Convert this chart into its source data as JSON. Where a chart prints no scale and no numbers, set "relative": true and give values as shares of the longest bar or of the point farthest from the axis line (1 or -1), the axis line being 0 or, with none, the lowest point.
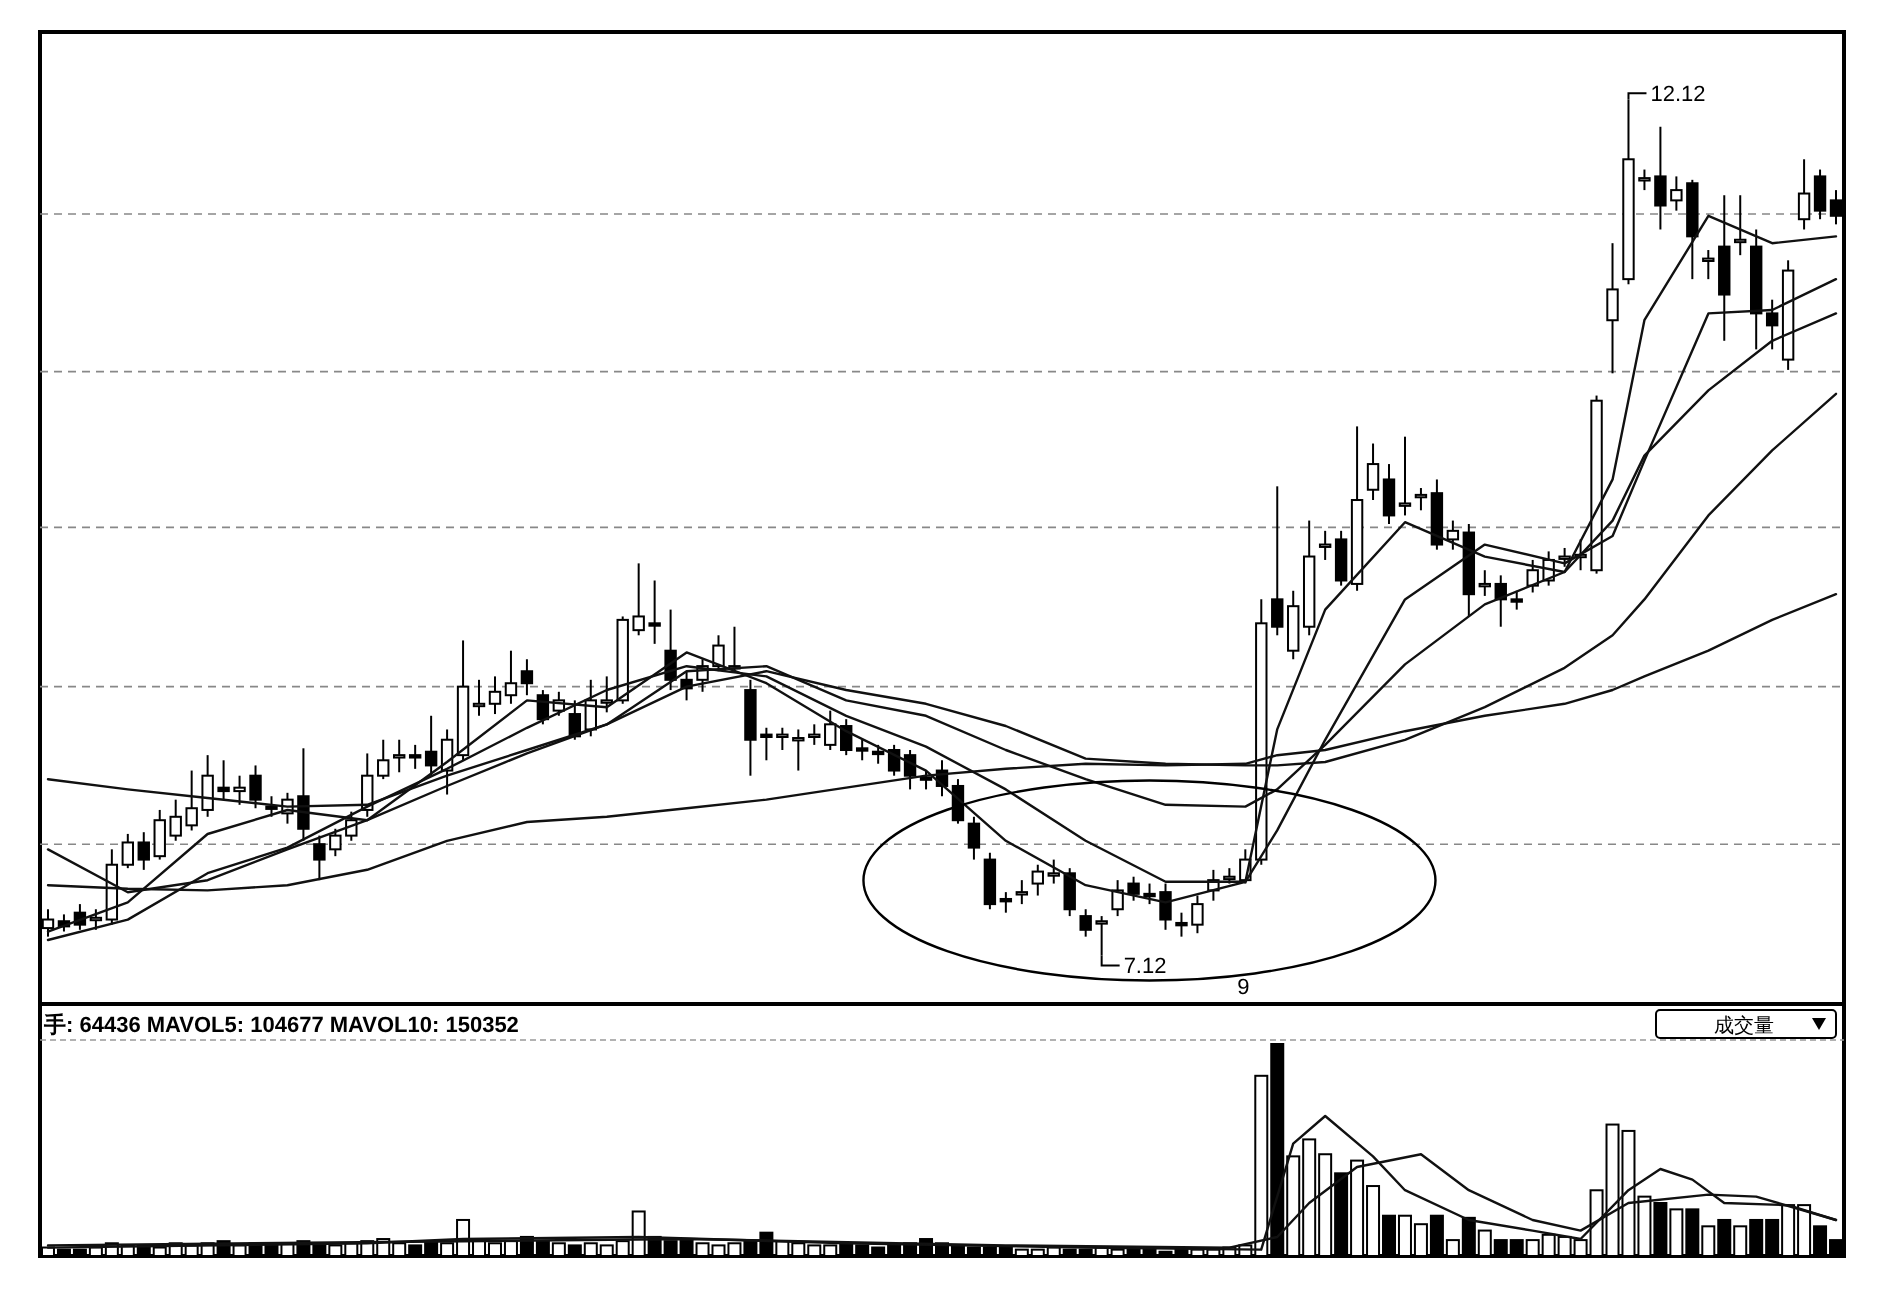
{
  "chart_data": [
    {
      "type": "candlestick",
      "color": "#000000",
      "grid": "y",
      "categories": [
        null,
        null,
        null,
        null,
        null,
        null,
        null,
        null,
        null,
        null,
        null,
        null,
        null,
        null,
        null,
        null,
        null,
        null,
        null,
        null,
        null,
        null,
        null,
        null,
        null,
        null,
        null,
        null,
        null,
        null,
        null,
        null,
        null,
        null,
        null,
        null,
        null,
        null,
        null,
        null,
        null,
        null,
        null,
        null,
        null,
        null,
        null,
        null,
        null,
        null,
        null,
        null,
        null,
        null,
        null,
        null,
        null,
        null,
        null,
        null,
        null,
        null,
        null,
        null,
        null,
        null,
        null,
        null,
        null,
        null,
        null,
        null,
        null,
        null,
        null,
        null,
        null,
        null,
        null,
        null,
        null,
        null,
        null,
        null,
        null,
        null,
        null,
        null,
        null,
        null,
        null,
        null,
        null,
        null,
        null,
        null,
        null,
        null,
        null,
        null,
        null,
        null,
        null,
        null,
        null,
        null,
        null,
        null,
        null,
        null,
        null,
        null,
        null
      ],
      "ohlc": [
        [
          7.28,
          7.39,
          7.23,
          7.33
        ],
        [
          7.32,
          7.36,
          7.26,
          7.29
        ],
        [
          7.37,
          7.42,
          7.27,
          7.3
        ],
        [
          7.33,
          7.39,
          7.27,
          7.34
        ],
        [
          7.33,
          7.74,
          7.3,
          7.65
        ],
        [
          7.65,
          7.83,
          7.63,
          7.78
        ],
        [
          7.78,
          7.84,
          7.62,
          7.68
        ],
        [
          7.7,
          7.97,
          7.68,
          7.91
        ],
        [
          7.82,
          8.03,
          7.79,
          7.93
        ],
        [
          7.88,
          8.2,
          7.85,
          7.98
        ],
        [
          7.97,
          8.29,
          7.93,
          8.17
        ],
        [
          8.1,
          8.26,
          8.03,
          8.08
        ],
        [
          8.08,
          8.17,
          8.0,
          8.1
        ],
        [
          8.17,
          8.23,
          7.98,
          8.03
        ],
        [
          7.99,
          8.05,
          7.93,
          7.98
        ],
        [
          7.95,
          8.07,
          7.89,
          8.03
        ],
        [
          8.05,
          8.33,
          7.79,
          7.86
        ],
        [
          7.77,
          7.82,
          7.56,
          7.68
        ],
        [
          7.74,
          7.86,
          7.7,
          7.82
        ],
        [
          7.82,
          7.96,
          7.79,
          7.91
        ],
        [
          7.97,
          8.3,
          7.93,
          8.17
        ],
        [
          8.17,
          8.38,
          8.15,
          8.26
        ],
        [
          8.28,
          8.38,
          8.19,
          8.29
        ],
        [
          8.29,
          8.35,
          8.21,
          8.28
        ],
        [
          8.31,
          8.52,
          8.17,
          8.23
        ],
        [
          8.2,
          8.44,
          8.06,
          8.38
        ],
        [
          8.29,
          8.96,
          8.26,
          8.69
        ],
        [
          8.58,
          8.73,
          8.52,
          8.59
        ],
        [
          8.59,
          8.75,
          8.53,
          8.66
        ],
        [
          8.64,
          8.9,
          8.59,
          8.71
        ],
        [
          8.78,
          8.85,
          8.64,
          8.71
        ],
        [
          8.64,
          8.67,
          8.47,
          8.5
        ],
        [
          8.55,
          8.66,
          8.52,
          8.61
        ],
        [
          8.53,
          8.61,
          8.38,
          8.4
        ],
        [
          8.44,
          8.73,
          8.4,
          8.61
        ],
        [
          8.6,
          8.75,
          8.54,
          8.61
        ],
        [
          8.61,
          9.1,
          8.59,
          9.08
        ],
        [
          9.02,
          9.41,
          8.99,
          9.1
        ],
        [
          9.06,
          9.31,
          8.94,
          9.05
        ],
        [
          8.9,
          9.14,
          8.67,
          8.73
        ],
        [
          8.73,
          8.78,
          8.61,
          8.68
        ],
        [
          8.73,
          8.85,
          8.66,
          8.81
        ],
        [
          8.81,
          8.99,
          8.78,
          8.93
        ],
        [
          8.8,
          9.04,
          8.78,
          8.81
        ],
        [
          8.67,
          8.73,
          8.17,
          8.38
        ],
        [
          8.41,
          8.45,
          8.26,
          8.4
        ],
        [
          8.4,
          8.45,
          8.32,
          8.41
        ],
        [
          8.38,
          8.44,
          8.2,
          8.39
        ],
        [
          8.4,
          8.47,
          8.35,
          8.41
        ],
        [
          8.35,
          8.55,
          8.32,
          8.47
        ],
        [
          8.46,
          8.5,
          8.29,
          8.32
        ],
        [
          8.33,
          8.38,
          8.26,
          8.32
        ],
        [
          8.31,
          8.35,
          8.24,
          8.3
        ],
        [
          8.32,
          8.35,
          8.17,
          8.2
        ],
        [
          8.29,
          8.32,
          8.09,
          8.17
        ],
        [
          8.16,
          8.2,
          8.09,
          8.15
        ],
        [
          8.2,
          8.26,
          8.05,
          8.11
        ],
        [
          8.11,
          8.15,
          7.89,
          7.91
        ],
        [
          7.89,
          7.93,
          7.68,
          7.75
        ],
        [
          7.68,
          7.72,
          7.39,
          7.42
        ],
        [
          7.45,
          7.49,
          7.37,
          7.44
        ],
        [
          7.48,
          7.56,
          7.42,
          7.49
        ],
        [
          7.54,
          7.65,
          7.47,
          7.61
        ],
        [
          7.59,
          7.68,
          7.54,
          7.6
        ],
        [
          7.6,
          7.63,
          7.35,
          7.39
        ],
        [
          7.35,
          7.39,
          7.23,
          7.27
        ],
        [
          7.31,
          7.35,
          7.12,
          7.32
        ],
        [
          7.39,
          7.56,
          7.35,
          7.5
        ],
        [
          7.54,
          7.58,
          7.44,
          7.48
        ],
        [
          7.48,
          7.54,
          7.42,
          7.47
        ],
        [
          7.49,
          7.54,
          7.27,
          7.33
        ],
        [
          7.31,
          7.37,
          7.23,
          7.3
        ],
        [
          7.3,
          7.47,
          7.25,
          7.42
        ],
        [
          7.5,
          7.62,
          7.44,
          7.56
        ],
        [
          7.57,
          7.63,
          7.54,
          7.58
        ],
        [
          7.56,
          7.74,
          7.54,
          7.68
        ],
        [
          7.68,
          9.2,
          7.65,
          9.06
        ],
        [
          9.2,
          9.86,
          8.99,
          9.04
        ],
        [
          8.9,
          9.25,
          8.85,
          9.16
        ],
        [
          9.04,
          9.66,
          8.99,
          9.45
        ],
        [
          9.51,
          9.6,
          9.43,
          9.52
        ],
        [
          9.55,
          9.6,
          9.28,
          9.31
        ],
        [
          9.29,
          10.21,
          9.25,
          9.78
        ],
        [
          9.84,
          10.11,
          9.78,
          9.99
        ],
        [
          9.9,
          9.99,
          9.64,
          9.69
        ],
        [
          9.75,
          10.15,
          9.69,
          9.76
        ],
        [
          9.8,
          9.85,
          9.72,
          9.81
        ],
        [
          9.82,
          9.9,
          9.49,
          9.52
        ],
        [
          9.55,
          9.66,
          9.49,
          9.6
        ],
        [
          9.59,
          9.64,
          9.1,
          9.23
        ],
        [
          9.28,
          9.37,
          9.22,
          9.29
        ],
        [
          9.29,
          9.34,
          9.04,
          9.2
        ],
        [
          9.2,
          9.25,
          9.14,
          9.19
        ],
        [
          9.28,
          9.43,
          9.24,
          9.37
        ],
        [
          9.31,
          9.48,
          9.28,
          9.43
        ],
        [
          9.44,
          9.5,
          9.39,
          9.45
        ],
        [
          9.45,
          9.55,
          9.37,
          9.46
        ],
        [
          9.37,
          10.39,
          9.35,
          10.36
        ],
        [
          10.83,
          11.28,
          10.52,
          11.01
        ],
        [
          11.07,
          12.12,
          11.04,
          11.77
        ],
        [
          11.65,
          11.71,
          11.59,
          11.66
        ],
        [
          11.67,
          11.96,
          11.36,
          11.5
        ],
        [
          11.53,
          11.67,
          11.47,
          11.59
        ],
        [
          11.63,
          11.65,
          11.07,
          11.32
        ],
        [
          11.18,
          11.24,
          11.07,
          11.19
        ],
        [
          11.26,
          11.56,
          10.71,
          10.98
        ],
        [
          11.29,
          11.56,
          11.21,
          11.3
        ],
        [
          11.26,
          11.36,
          10.66,
          10.87
        ],
        [
          10.87,
          10.95,
          10.66,
          10.8
        ],
        [
          10.6,
          11.18,
          10.54,
          11.12
        ],
        [
          11.42,
          11.77,
          11.36,
          11.57
        ],
        [
          11.67,
          11.71,
          11.42,
          11.47
        ],
        [
          11.53,
          11.59,
          11.39,
          11.44
        ]
      ],
      "ylim": [
        6.86,
        12.49
      ],
      "yticks": [
        {
          "value": 7.77,
          "label": null
        },
        {
          "value": 8.69,
          "label": null
        },
        {
          "value": 9.62,
          "label": null
        },
        {
          "value": 10.53,
          "label": null
        },
        {
          "value": 11.45,
          "label": null
        }
      ],
      "series": [
        {
          "type": "line",
          "color": "#111111",
          "values": [
            7.26,
            null,
            null,
            null,
            null,
            7.43,
            null,
            null,
            null,
            null,
            7.83,
            null,
            null,
            null,
            null,
            7.97,
            null,
            null,
            null,
            null,
            7.91,
            null,
            null,
            null,
            null,
            8.25,
            null,
            null,
            null,
            null,
            8.61,
            null,
            null,
            null,
            null,
            8.57,
            null,
            null,
            null,
            null,
            8.89,
            null,
            null,
            null,
            null,
            8.71,
            null,
            null,
            null,
            null,
            8.43,
            null,
            null,
            null,
            null,
            8.2,
            null,
            null,
            null,
            null,
            7.79,
            null,
            null,
            null,
            null,
            7.53,
            null,
            null,
            null,
            null,
            7.43,
            null,
            null,
            null,
            null,
            7.55,
            null,
            8.44,
            null,
            null,
            9.14,
            null,
            null,
            null,
            null,
            9.65,
            null,
            null,
            null,
            null,
            9.45,
            null,
            null,
            null,
            null,
            9.36,
            null,
            null,
            9.9,
            null,
            10.83,
            null,
            null,
            null,
            11.44,
            null,
            null,
            null,
            11.28,
            null,
            null,
            null,
            11.32
          ]
        },
        {
          "type": "line",
          "color": "#111111",
          "values": [
            7.21,
            null,
            null,
            null,
            null,
            7.33,
            null,
            null,
            null,
            null,
            7.6,
            null,
            null,
            null,
            null,
            7.75,
            null,
            null,
            null,
            null,
            7.99,
            null,
            null,
            null,
            null,
            8.21,
            null,
            null,
            null,
            null,
            8.45,
            null,
            null,
            null,
            null,
            8.67,
            null,
            null,
            null,
            null,
            8.81,
            null,
            null,
            null,
            null,
            8.75,
            null,
            null,
            null,
            null,
            8.52,
            null,
            null,
            null,
            null,
            8.34,
            null,
            null,
            null,
            null,
            8.09,
            null,
            null,
            null,
            null,
            7.79,
            null,
            null,
            null,
            null,
            7.55,
            null,
            null,
            null,
            null,
            7.55,
            null,
            7.85,
            null,
            null,
            8.38,
            null,
            null,
            null,
            null,
            9.2,
            null,
            null,
            null,
            null,
            9.52,
            null,
            null,
            null,
            null,
            9.41,
            null,
            null,
            9.57,
            null,
            10.01,
            null,
            null,
            null,
            10.87,
            null,
            null,
            null,
            10.89,
            null,
            null,
            null,
            11.07
          ]
        },
        {
          "type": "line",
          "color": "#111111",
          "values": [
            7.74,
            null,
            null,
            null,
            null,
            7.49,
            null,
            null,
            null,
            null,
            7.56,
            null,
            null,
            null,
            null,
            7.74,
            null,
            null,
            null,
            null,
            7.91,
            null,
            null,
            null,
            null,
            8.11,
            null,
            null,
            null,
            null,
            8.3,
            null,
            null,
            null,
            null,
            8.47,
            null,
            null,
            null,
            null,
            8.78,
            null,
            null,
            null,
            null,
            8.81,
            null,
            null,
            null,
            null,
            8.61,
            null,
            null,
            null,
            null,
            8.52,
            null,
            null,
            null,
            null,
            8.32,
            null,
            null,
            null,
            null,
            8.15,
            null,
            null,
            null,
            null,
            8.0,
            null,
            null,
            null,
            null,
            7.99,
            null,
            8.09,
            null,
            null,
            8.35,
            null,
            null,
            null,
            null,
            8.82,
            null,
            null,
            null,
            null,
            9.17,
            null,
            null,
            null,
            null,
            9.36,
            null,
            null,
            9.66,
            null,
            10.04,
            null,
            null,
            null,
            10.42,
            null,
            null,
            null,
            10.71,
            null,
            null,
            null,
            10.87
          ]
        },
        {
          "type": "line",
          "color": "#111111",
          "values": [
            8.15,
            null,
            null,
            null,
            null,
            8.09,
            null,
            null,
            null,
            null,
            8.04,
            null,
            null,
            null,
            null,
            7.99,
            null,
            null,
            null,
            null,
            8.0,
            null,
            null,
            null,
            null,
            8.17,
            null,
            null,
            null,
            null,
            8.32,
            null,
            null,
            null,
            null,
            8.47,
            null,
            null,
            null,
            null,
            8.69,
            null,
            null,
            null,
            null,
            8.78,
            null,
            null,
            null,
            null,
            8.67,
            null,
            null,
            null,
            null,
            8.59,
            null,
            null,
            null,
            null,
            8.46,
            null,
            null,
            null,
            null,
            8.27,
            null,
            null,
            null,
            null,
            8.24,
            null,
            null,
            null,
            null,
            8.23,
            null,
            8.23,
            null,
            null,
            8.25,
            null,
            null,
            null,
            null,
            8.38,
            null,
            null,
            null,
            null,
            8.57,
            null,
            null,
            null,
            null,
            8.8,
            null,
            null,
            8.99,
            null,
            9.2,
            null,
            null,
            null,
            9.69,
            null,
            null,
            null,
            10.07,
            null,
            null,
            null,
            10.4
          ]
        },
        {
          "type": "line",
          "color": "#111111",
          "values": [
            7.53,
            null,
            null,
            null,
            null,
            7.51,
            null,
            null,
            null,
            null,
            7.5,
            null,
            null,
            null,
            null,
            7.53,
            null,
            null,
            null,
            null,
            7.62,
            null,
            null,
            null,
            null,
            7.79,
            null,
            null,
            null,
            null,
            7.9,
            null,
            null,
            null,
            null,
            7.93,
            null,
            null,
            null,
            null,
            7.98,
            null,
            null,
            null,
            null,
            8.03,
            null,
            null,
            null,
            null,
            8.1,
            null,
            null,
            null,
            null,
            8.17,
            null,
            null,
            null,
            null,
            8.21,
            null,
            null,
            null,
            null,
            8.24,
            null,
            null,
            null,
            null,
            8.23,
            null,
            null,
            null,
            null,
            8.24,
            null,
            8.29,
            null,
            null,
            8.32,
            null,
            null,
            null,
            null,
            8.43,
            null,
            null,
            null,
            null,
            8.52,
            null,
            null,
            null,
            null,
            8.59,
            null,
            null,
            8.67,
            null,
            8.75,
            null,
            null,
            null,
            8.9,
            null,
            null,
            null,
            9.08,
            null,
            null,
            null,
            9.23
          ]
        }
      ],
      "annotations": [
        "12.12",
        "7.12",
        "9"
      ]
    },
    {
      "type": "bar",
      "relative": true,
      "categories": [
        null,
        null,
        null,
        null,
        null,
        null,
        null,
        null,
        null,
        null,
        null,
        null,
        null,
        null,
        null,
        null,
        null,
        null,
        null,
        null,
        null,
        null,
        null,
        null,
        null,
        null,
        null,
        null,
        null,
        null,
        null,
        null,
        null,
        null,
        null,
        null,
        null,
        null,
        null,
        null,
        null,
        null,
        null,
        null,
        null,
        null,
        null,
        null,
        null,
        null,
        null,
        null,
        null,
        null,
        null,
        null,
        null,
        null,
        null,
        null,
        null,
        null,
        null,
        null,
        null,
        null,
        null,
        null,
        null,
        null,
        null,
        null,
        null,
        null,
        null,
        null,
        null,
        null,
        null,
        null,
        null,
        null,
        null,
        null,
        null,
        null,
        null,
        null,
        null,
        null,
        null,
        null,
        null,
        null,
        null,
        null,
        null,
        null,
        null,
        null,
        null,
        null,
        null,
        null,
        null,
        null,
        null,
        null,
        null,
        null,
        null,
        null,
        null
      ],
      "series": [
        {
          "type": "bar",
          "color": "#000000",
          "values": [
            0.04,
            0.03,
            0.03,
            0.04,
            0.06,
            0.05,
            0.05,
            0.04,
            0.06,
            0.05,
            0.06,
            0.07,
            0.05,
            0.06,
            0.05,
            0.06,
            0.07,
            0.06,
            0.05,
            0.06,
            0.07,
            0.08,
            0.06,
            0.05,
            0.07,
            0.06,
            0.17,
            0.08,
            0.06,
            0.07,
            0.09,
            0.07,
            0.06,
            0.05,
            0.06,
            0.05,
            0.07,
            0.21,
            0.09,
            0.07,
            0.08,
            0.06,
            0.05,
            0.06,
            0.07,
            0.11,
            0.07,
            0.06,
            0.05,
            0.05,
            0.06,
            0.05,
            0.04,
            0.05,
            0.06,
            0.08,
            0.06,
            0.05,
            0.04,
            0.04,
            0.04,
            0.03,
            0.03,
            0.04,
            0.03,
            0.03,
            0.04,
            0.03,
            0.03,
            0.03,
            0.02,
            0.03,
            0.03,
            0.03,
            0.04,
            0.05,
            0.85,
            1.0,
            0.47,
            0.55,
            0.48,
            0.39,
            0.45,
            0.33,
            0.19,
            0.19,
            0.15,
            0.19,
            0.075,
            0.18,
            0.12,
            0.075,
            0.075,
            0.075,
            0.1,
            0.09,
            0.075,
            0.31,
            0.62,
            0.59,
            0.28,
            0.25,
            0.22,
            0.22,
            0.14,
            0.17,
            0.14,
            0.17,
            0.17,
            0.24,
            0.24,
            0.14,
            0.075
          ]
        },
        {
          "type": "line",
          "color": "#111111",
          "values": [
            0.04,
            null,
            null,
            null,
            null,
            null,
            null,
            null,
            null,
            null,
            null,
            null,
            null,
            null,
            null,
            null,
            null,
            null,
            null,
            null,
            0.06,
            null,
            null,
            null,
            null,
            null,
            0.08,
            null,
            null,
            null,
            null,
            null,
            null,
            null,
            null,
            null,
            null,
            0.09,
            null,
            null,
            null,
            null,
            null,
            null,
            null,
            null,
            null,
            null,
            null,
            null,
            0.06,
            null,
            null,
            null,
            null,
            null,
            null,
            null,
            null,
            null,
            null,
            null,
            null,
            null,
            null,
            0.04,
            null,
            null,
            null,
            null,
            null,
            null,
            null,
            null,
            null,
            null,
            0.03,
            null,
            0.53,
            null,
            0.66,
            null,
            null,
            0.47,
            null,
            0.31,
            null,
            null,
            null,
            0.17,
            null,
            null,
            null,
            0.12,
            null,
            null,
            0.08,
            null,
            null,
            0.31,
            null,
            0.41,
            null,
            0.36,
            null,
            0.25,
            null,
            null,
            null,
            0.24,
            null,
            null,
            0.17
          ]
        },
        {
          "type": "line",
          "color": "#111111",
          "values": [
            0.05,
            null,
            null,
            null,
            null,
            null,
            null,
            null,
            null,
            null,
            null,
            null,
            null,
            null,
            null,
            null,
            null,
            null,
            null,
            null,
            null,
            null,
            null,
            null,
            null,
            null,
            0.07,
            null,
            null,
            null,
            null,
            null,
            null,
            null,
            null,
            null,
            null,
            null,
            null,
            null,
            0.08,
            null,
            null,
            null,
            null,
            null,
            null,
            null,
            null,
            null,
            null,
            null,
            null,
            null,
            null,
            null,
            null,
            null,
            null,
            null,
            0.05,
            null,
            null,
            null,
            null,
            null,
            null,
            null,
            null,
            null,
            null,
            null,
            null,
            null,
            0.04,
            null,
            null,
            0.09,
            null,
            0.25,
            null,
            null,
            0.42,
            null,
            null,
            null,
            0.48,
            null,
            null,
            0.31,
            null,
            null,
            null,
            0.17,
            null,
            null,
            0.12,
            null,
            null,
            0.25,
            null,
            null,
            null,
            null,
            0.29,
            null,
            null,
            0.28,
            null,
            null,
            null,
            null,
            0.17
          ]
        }
      ],
      "annotations": [
        "手: 64436 MAVOL5: 104677 MAVOL10: 150352",
        "成交量"
      ]
    }
  ]
}
